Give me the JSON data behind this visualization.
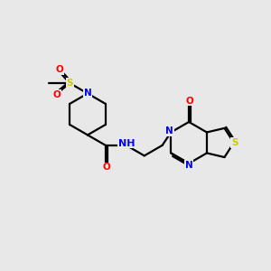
{
  "background_color": "#e8e8e8",
  "bond_color": "#000000",
  "N_color": "#0000ff",
  "O_color": "#ff0000",
  "S_color": "#cccc00",
  "H_color": "#808080",
  "line_width": 1.6,
  "figsize": [
    3.0,
    3.0
  ],
  "dpi": 100,
  "font_size": 7.5,
  "xlim": [
    0,
    10
  ],
  "ylim": [
    0,
    10
  ]
}
